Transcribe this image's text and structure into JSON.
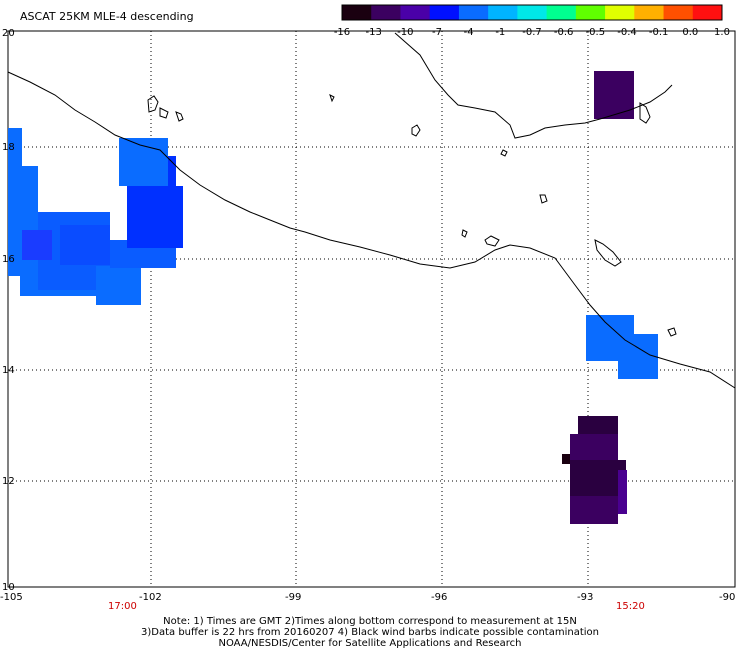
{
  "title": "ASCAT 25KM MLE-4 descending",
  "colorbar": {
    "labels": [
      "-16",
      "-13",
      "-10",
      "-7",
      "-4",
      "-1",
      "-0.7",
      "-0.6",
      "-0.5",
      "-0.4",
      "-0.1",
      "0.0",
      "1.0"
    ],
    "colors": [
      "#1a0010",
      "#3b0060",
      "#4a00a8",
      "#0010ff",
      "#0a6cff",
      "#00b4ff",
      "#00e8e8",
      "#00ff90",
      "#60ff00",
      "#e0ff00",
      "#ffb000",
      "#ff5000",
      "#ff1010"
    ]
  },
  "axes": {
    "lon_labels": [
      "-105",
      "-102",
      "-99",
      "-96",
      "-93",
      "-90"
    ],
    "lat_labels": [
      "10",
      "12",
      "14",
      "16",
      "18",
      "20"
    ]
  },
  "times": {
    "left": "17:00",
    "right": "15:20"
  },
  "notes": {
    "line1": "Note: 1) Times are GMT 2)Times along bottom correspond to measurement at 15N",
    "line2": "3)Data buffer is 22 hrs from 20160207 4) Black wind barbs indicate possible contamination",
    "line3": "NOAA/NESDIS/Center for Satellite Applications and Research"
  }
}
